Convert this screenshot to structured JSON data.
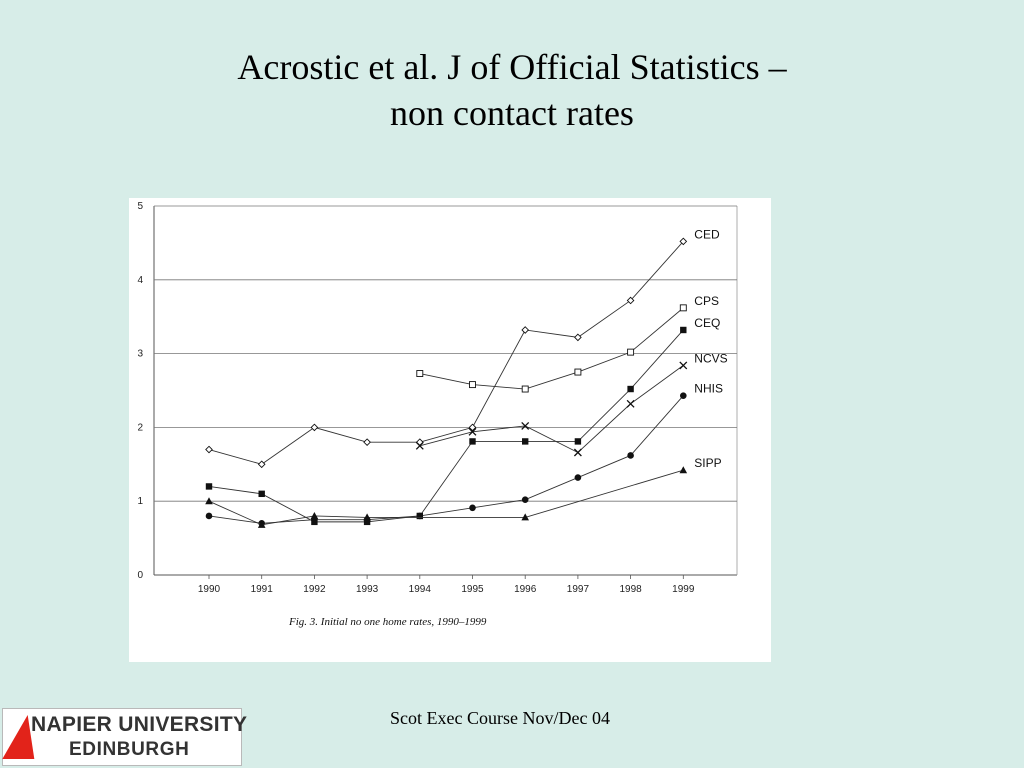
{
  "slide": {
    "title_line1": "Acrostic et al. J of Official Statistics –",
    "title_line2": "non contact rates",
    "footer": "Scot Exec Course Nov/Dec 04",
    "logo_line1": "NAPIER UNIVERSITY",
    "logo_line2": "EDINBURGH",
    "background": "#d7ede8"
  },
  "chart_data": {
    "type": "line",
    "title": "",
    "caption": "Fig. 3.   Initial no one home rates, 1990–1999",
    "xlabel": "",
    "ylabel": "",
    "x": [
      1990,
      1991,
      1992,
      1993,
      1994,
      1995,
      1996,
      1997,
      1998,
      1999
    ],
    "x_ticks": [
      "1990",
      "1991",
      "1992",
      "1993",
      "1994",
      "1995",
      "1996",
      "1997",
      "1998",
      "1999"
    ],
    "y_ticks": [
      "0",
      "1",
      "2",
      "3",
      "4",
      "5"
    ],
    "ylim": [
      0,
      5
    ],
    "grid": "horizontal",
    "legend": "labels at line ends (right)",
    "series": [
      {
        "name": "CED",
        "marker": "diamond",
        "points": [
          [
            1990,
            1.7
          ],
          [
            1991,
            1.5
          ],
          [
            1992,
            2.0
          ],
          [
            1993,
            1.8
          ],
          [
            1994,
            1.8
          ],
          [
            1995,
            2.0
          ],
          [
            1996,
            3.32
          ],
          [
            1997,
            3.22
          ],
          [
            1998,
            3.72
          ],
          [
            1999,
            4.52
          ]
        ]
      },
      {
        "name": "CPS",
        "marker": "open-square",
        "points": [
          [
            1994,
            2.73
          ],
          [
            1995,
            2.58
          ],
          [
            1996,
            2.52
          ],
          [
            1997,
            2.75
          ],
          [
            1998,
            3.02
          ],
          [
            1999,
            3.62
          ]
        ]
      },
      {
        "name": "CEQ",
        "marker": "filled-square",
        "points": [
          [
            1990,
            1.2
          ],
          [
            1991,
            1.1
          ],
          [
            1992,
            0.72
          ],
          [
            1993,
            0.72
          ],
          [
            1994,
            0.8
          ],
          [
            1995,
            1.81
          ],
          [
            1996,
            1.81
          ],
          [
            1997,
            1.81
          ],
          [
            1998,
            2.52
          ],
          [
            1999,
            3.32
          ]
        ]
      },
      {
        "name": "NCVS",
        "marker": "x",
        "points": [
          [
            1994,
            1.75
          ],
          [
            1995,
            1.94
          ],
          [
            1996,
            2.02
          ],
          [
            1997,
            1.66
          ],
          [
            1998,
            2.32
          ],
          [
            1999,
            2.84
          ]
        ]
      },
      {
        "name": "NHIS",
        "marker": "circle",
        "points": [
          [
            1990,
            0.8
          ],
          [
            1991,
            0.7
          ],
          [
            1992,
            0.75
          ],
          [
            1993,
            0.75
          ],
          [
            1994,
            0.8
          ],
          [
            1995,
            0.91
          ],
          [
            1996,
            1.02
          ],
          [
            1997,
            1.32
          ],
          [
            1998,
            1.62
          ],
          [
            1999,
            2.43
          ]
        ]
      },
      {
        "name": "SIPP",
        "marker": "triangle",
        "points": [
          [
            1990,
            1.0
          ],
          [
            1991,
            0.68
          ],
          [
            1992,
            0.8
          ],
          [
            1993,
            0.78
          ],
          [
            1996,
            0.78
          ],
          [
            1999,
            1.42
          ]
        ]
      }
    ]
  }
}
